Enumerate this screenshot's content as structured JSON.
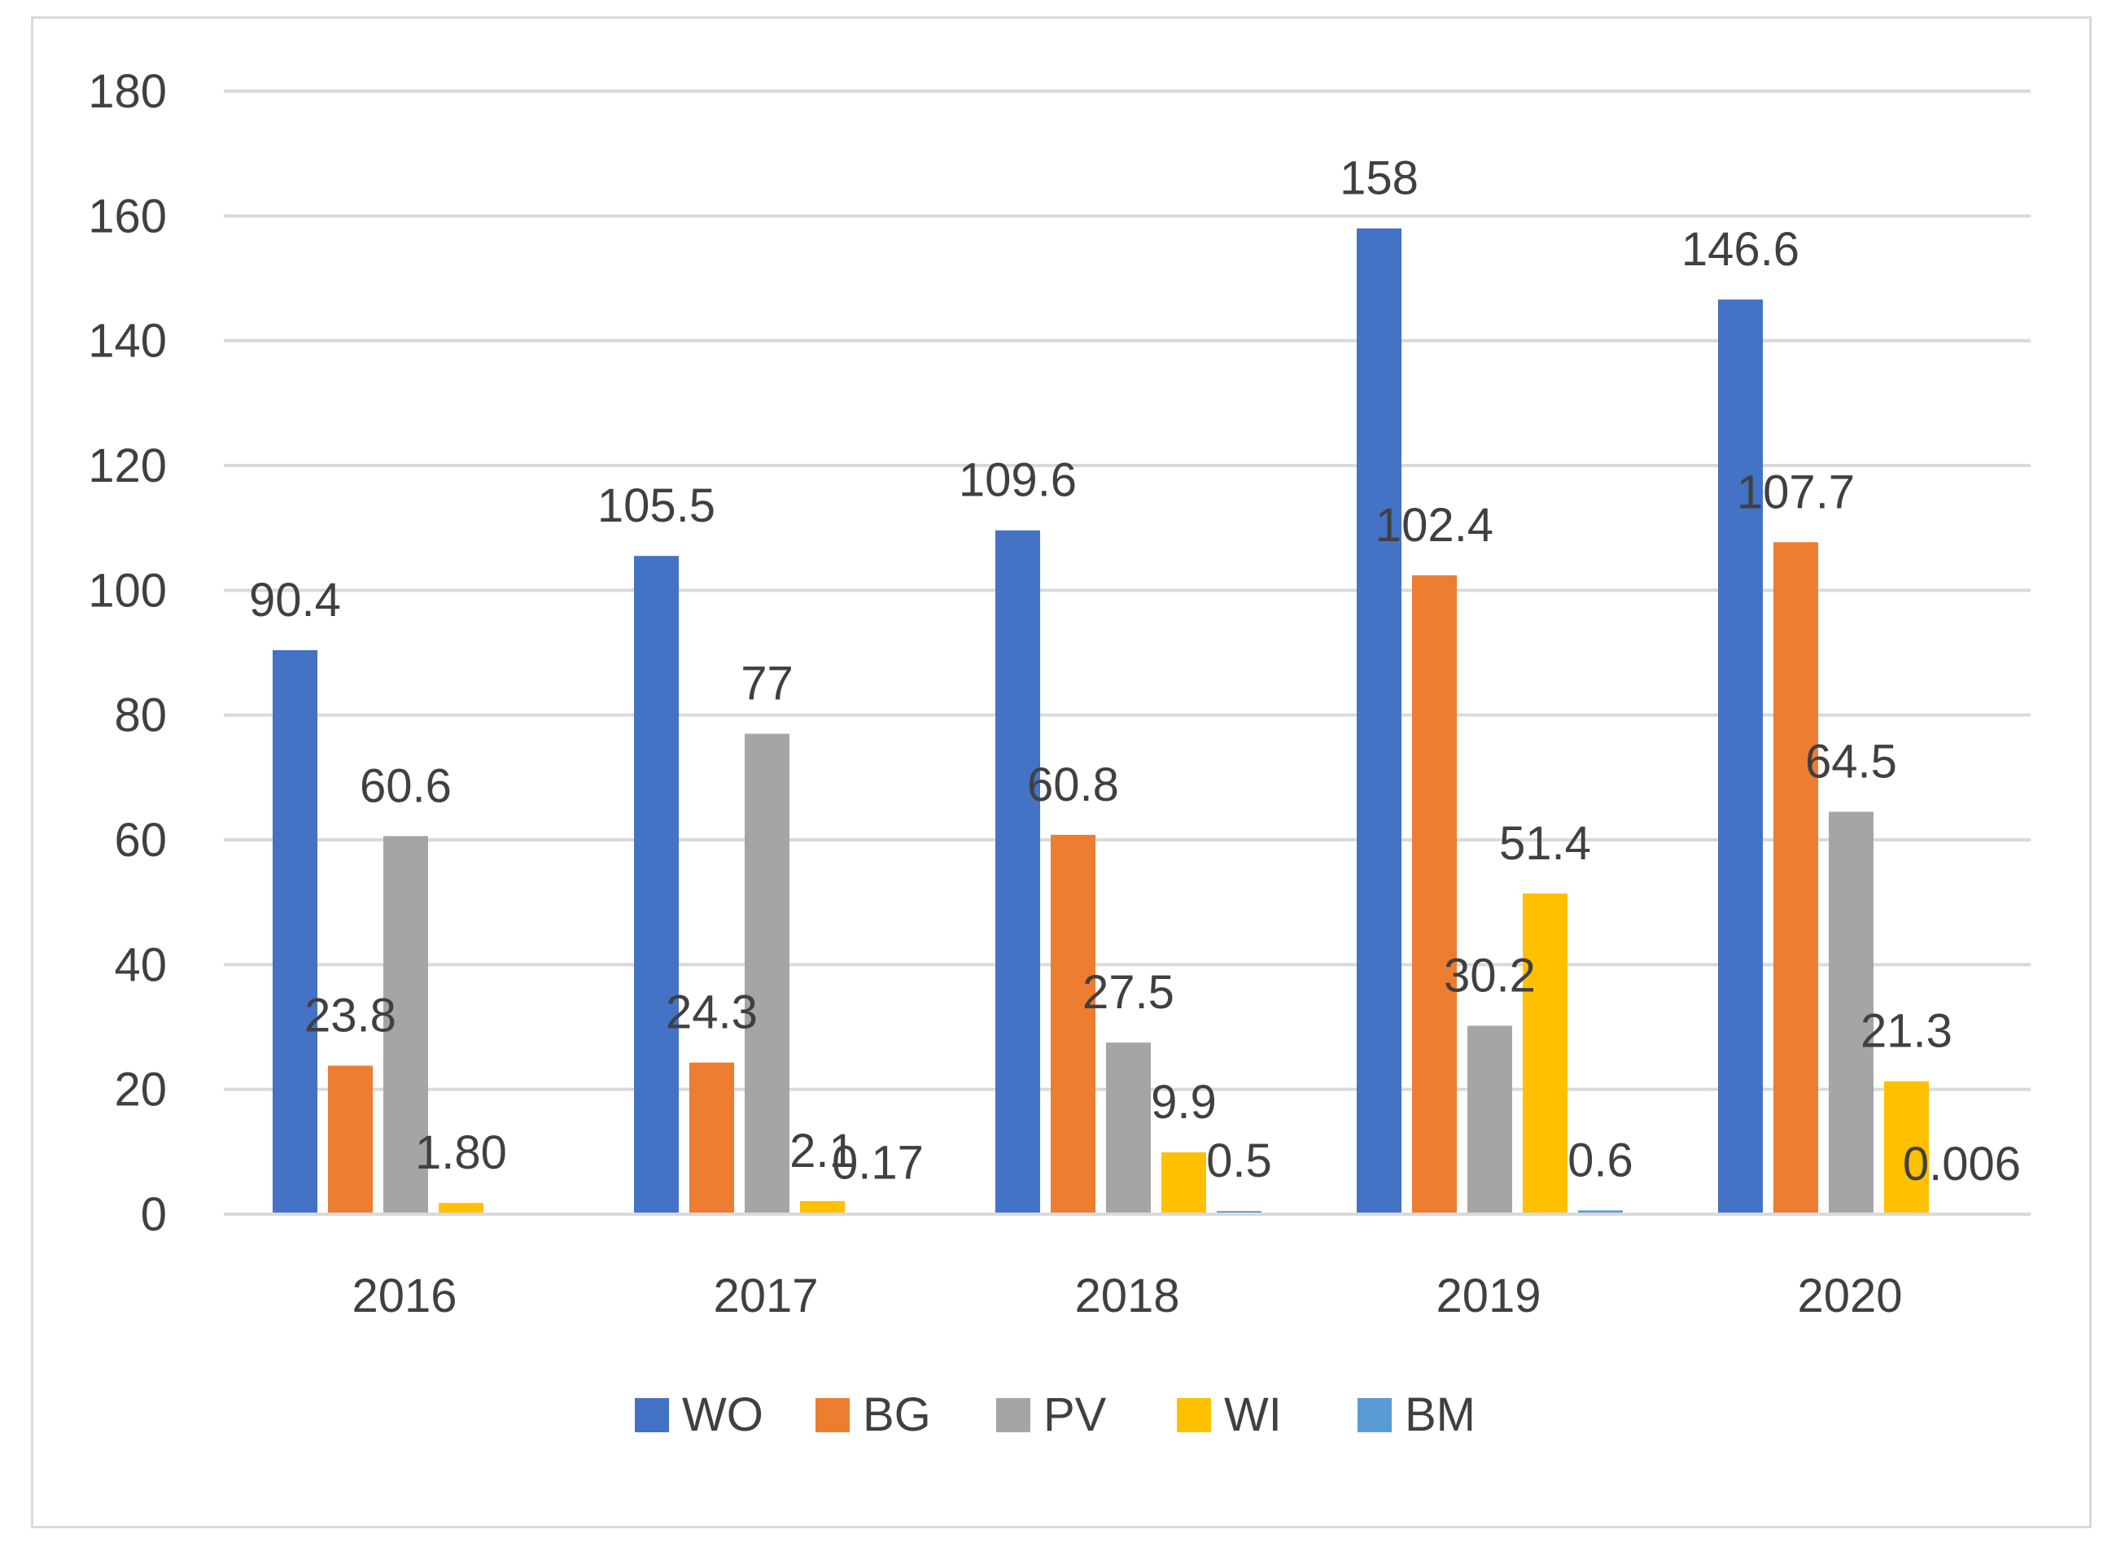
{
  "chart_data": {
    "type": "bar",
    "title": "",
    "xlabel": "",
    "ylabel": "",
    "ylim": [
      0,
      180
    ],
    "yticks": [
      0,
      20,
      40,
      60,
      80,
      100,
      120,
      140,
      160,
      180
    ],
    "grid": true,
    "legend_position": "bottom",
    "categories": [
      "2016",
      "2017",
      "2018",
      "2019",
      "2020"
    ],
    "series": [
      {
        "name": "WO",
        "color": "#4472c4",
        "values": [
          90.4,
          105.5,
          109.6,
          158,
          146.6
        ],
        "labels": [
          "90.4",
          "105.5",
          "109.6",
          "158",
          "146.6"
        ]
      },
      {
        "name": "BG",
        "color": "#ed7d31",
        "values": [
          23.8,
          24.3,
          60.8,
          102.4,
          107.7
        ],
        "labels": [
          "23.8",
          "24.3",
          "60.8",
          "102.4",
          "107.7"
        ]
      },
      {
        "name": "PV",
        "color": "#a5a5a5",
        "values": [
          60.6,
          77,
          27.5,
          30.2,
          64.5
        ],
        "labels": [
          "60.6",
          "77",
          "27.5",
          "30.2",
          "64.5"
        ]
      },
      {
        "name": "WI",
        "color": "#ffc000",
        "values": [
          1.8,
          2.1,
          9.9,
          51.4,
          21.3
        ],
        "labels": [
          "1.80",
          "2.1",
          "9.9",
          "51.4",
          "21.3"
        ]
      },
      {
        "name": "BM",
        "color": "#5b9bd5",
        "values": [
          0,
          0.17,
          0.5,
          0.6,
          0.006
        ],
        "labels": [
          null,
          "0.17",
          "0.5",
          "0.6",
          "0.006"
        ]
      }
    ]
  }
}
